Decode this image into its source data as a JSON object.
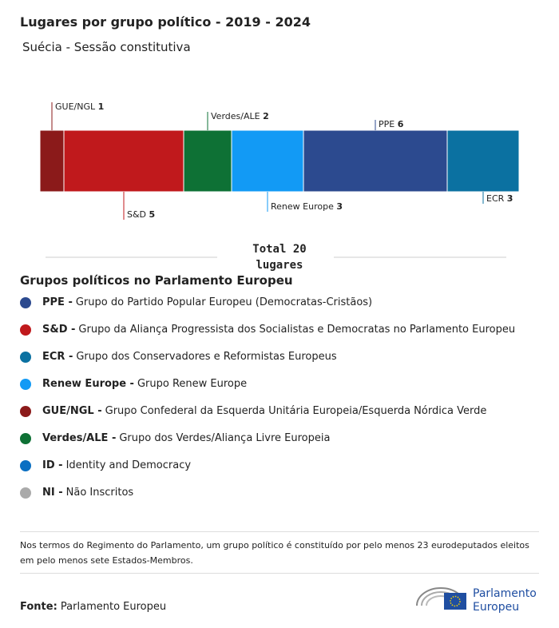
{
  "chart_data": {
    "type": "stacked-bar",
    "title": "Lugares por grupo político - 2019 - 2024",
    "subtitle": "Suécia - Sessão constitutiva",
    "series": [
      {
        "name": "GUE/NGL",
        "color": "#8b1a1a",
        "values": [
          1
        ]
      },
      {
        "name": "S&D",
        "color": "#c0191c",
        "values": [
          5
        ]
      },
      {
        "name": "Verdes/ALE",
        "color": "#0e7135",
        "values": [
          2
        ]
      },
      {
        "name": "Renew Europe",
        "color": "#129af5",
        "values": [
          3
        ]
      },
      {
        "name": "PPE",
        "color": "#2c4a8f",
        "values": [
          6
        ]
      },
      {
        "name": "ECR",
        "color": "#0b71a1",
        "values": [
          3
        ]
      }
    ],
    "total_prefix": "Total",
    "total": 20,
    "total_suffix": "lugares"
  },
  "legend": {
    "title": "Grupos políticos no Parlamento Europeu",
    "items": [
      {
        "abbr": "PPE -",
        "name": "Grupo do Partido Popular Europeu (Democratas-Cristãos)",
        "color": "#2c4a8f"
      },
      {
        "abbr": "S&D -",
        "name": "Grupo da Aliança Progressista dos Socialistas e Democratas no Parlamento Europeu",
        "color": "#c0191c"
      },
      {
        "abbr": "ECR -",
        "name": "Grupo dos Conservadores e Reformistas Europeus",
        "color": "#0b71a1"
      },
      {
        "abbr": "Renew Europe -",
        "name": "Grupo Renew Europe",
        "color": "#129af5"
      },
      {
        "abbr": "GUE/NGL -",
        "name": "Grupo Confederal da Esquerda Unitária Europeia/Esquerda Nórdica Verde",
        "color": "#8b1a1a"
      },
      {
        "abbr": "Verdes/ALE -",
        "name": "Grupo dos Verdes/Aliança Livre Europeia",
        "color": "#0e7135"
      },
      {
        "abbr": "ID -",
        "name": "Identity and Democracy",
        "color": "#0a6fc2"
      },
      {
        "abbr": "NI -",
        "name": "Não Inscritos",
        "color": "#aaaaaa"
      }
    ]
  },
  "note": "Nos termos do Regimento do Parlamento, um grupo político é constituído por pelo menos 23 eurodeputados eleitos em pelo menos sete Estados-Membros.",
  "source": {
    "label": "Fonte:",
    "text": "Parlamento Europeu"
  },
  "logo": {
    "line1": "Parlamento",
    "line2": "Europeu"
  }
}
